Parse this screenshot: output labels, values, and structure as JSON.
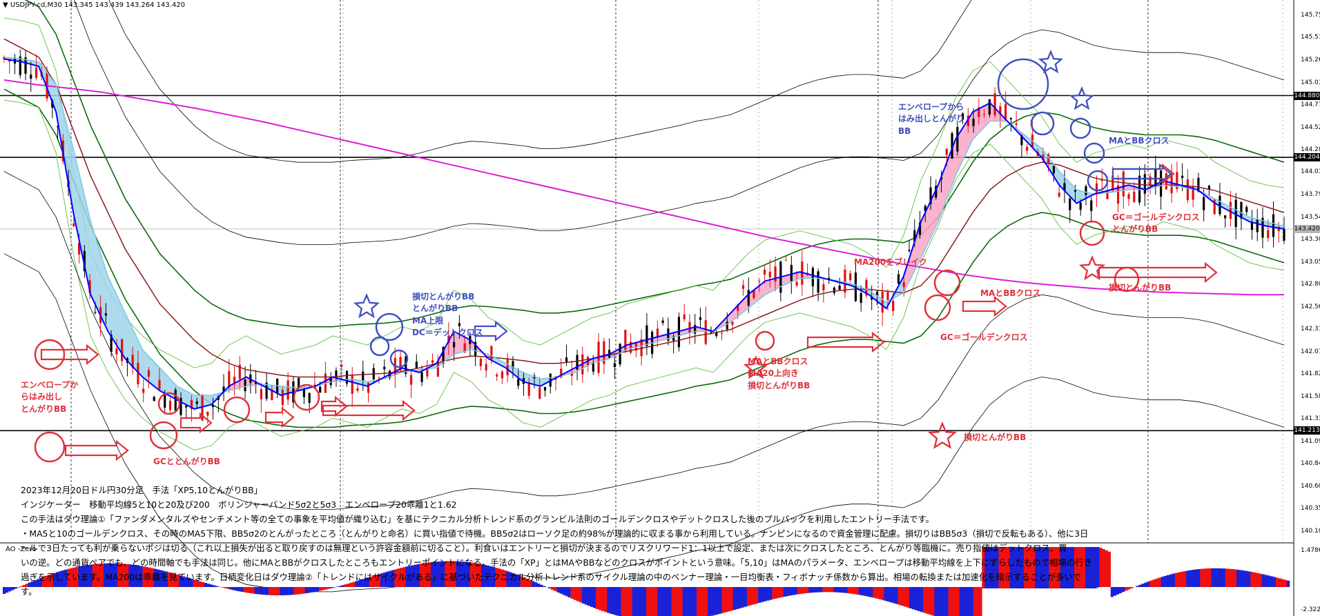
{
  "header": {
    "symbol_line": "▼ USDJPY-cd,M30  143.345 143.439 143.264 143.420"
  },
  "price_axis": {
    "ticks": [
      "145.750",
      "145.510",
      "145.260",
      "145.015",
      "144.770",
      "144.525",
      "144.280",
      "144.035",
      "143.790",
      "143.540",
      "143.300",
      "143.050",
      "142.805",
      "142.560",
      "142.315",
      "142.070",
      "141.825",
      "141.580",
      "141.335",
      "141.090",
      "140.845",
      "140.600",
      "140.355",
      "140.105"
    ],
    "levels": [
      "144.880",
      "144.204",
      "143.420",
      "141.213"
    ]
  },
  "oscillator": {
    "label": "AO -Zero",
    "top_label": "1.4786",
    "bottom_label": "-2.3224"
  },
  "annotations": [
    {
      "id": "envelope-left",
      "text": "エンベロープか\nらはみ出し\nとんがりBB",
      "color": "red"
    },
    {
      "id": "gc-tongari",
      "text": "GCととんがりBB",
      "color": "red"
    },
    {
      "id": "sl-tongari-blue",
      "text": "損切とんがりBB\nとんがりBB\nMA上限\nDC＝デットクロス",
      "color": "blue"
    },
    {
      "id": "ma-bb-cross-red",
      "text": "MAとBBクロス\nMA20上向き\n損切とんがりBB",
      "color": "red"
    },
    {
      "id": "ma200-break",
      "text": "MA200をブレイク",
      "color": "red"
    },
    {
      "id": "ma-bb-cross-2",
      "text": "MAとBBクロス",
      "color": "red"
    },
    {
      "id": "gc-golden",
      "text": "GC＝ゴールデンクロス",
      "color": "red"
    },
    {
      "id": "sl-tongari-bottom",
      "text": "損切とんがりBB",
      "color": "red"
    },
    {
      "id": "envelope-top",
      "text": "エンベロープから\nはみ出しとんがり\nBB",
      "color": "blue"
    },
    {
      "id": "ma-bb-cross-blue",
      "text": "MAとBBクロス",
      "color": "blue"
    },
    {
      "id": "gc-right",
      "text": "GC＝ゴールデンクロス\nとんがりBB",
      "color": "red"
    },
    {
      "id": "sl-tongari-right",
      "text": "損切とんがりBB",
      "color": "red"
    }
  ],
  "description": {
    "lines": [
      "2023年12月20日ドル円30分足　手法「XP5,10とんがりBB」",
      "インジケーター　移動平均線5と10と20及び200　ボリンジャーバンド5σ2と5σ3　エンベロープ20乖離1と1.62",
      "この手法はダウ理論①「ファンダメンタルズやセンチメント等の全ての事象を平均値が織り込む」を基にテクニカル分析トレンド系のグランビル法則のゴールデンクロスやデットクロスした後のプルバックを利用したエントリー手法です。",
      "・MA5と10のゴールデンクロス、その時のMA5下限、BB5σ2のとんがったところ（とんがりと命名）に買い指値で待機。BB5σ2はローソク足の約98%が理論的に収まる事から利用している。ナンピンになるので資金管理に配慮。損切りはBB5σ3（損切で反転もある）、他に3日",
      "ールで3日たっても利が乗らないポジは切る（これ以上損失が出ると取り戻すのは無理という許容金額前に切ること）。利食いはエントリーと損切が決まるのでリスクリワード1：1以上で設定、または次にクロスしたところ、とんがり等臨機に。売り指値はデットクロス、買",
      "いの逆。どの通貨ペアでも、どの時間軸でも手法は同じ。他にMAとBBがクロスしたところもエントリーポイントになる。手法の「XP」とはMAやBBなどのクロスがポイントという意味。「5,10」はMAのパラメータ、エンベロープは移動平均線を上下にずらしたもので相場の行き",
      "過ぎを示しています。MA200は乖離を見ています。日柄変化日はダウ理論②「トレンドにはサイクルがある」に基づいたテクニカル分析トレンド系のサイクル理論の中のベンナー理論・一目均衡表・フィボナッチ係数から算出。相場の転換または加速化を暗示することが多いで",
      "す。"
    ]
  },
  "chart_data": {
    "type": "line",
    "title": "",
    "symbol": "USDJPY-cd,M30",
    "ohlc_header": {
      "open": 143.345,
      "high": 143.439,
      "low": 143.264,
      "close": 143.42
    },
    "ylim": [
      140.0,
      145.85
    ],
    "series": [
      {
        "values": [
          145.28,
          145.25,
          145.2,
          144.7,
          143.6,
          142.7,
          142.3,
          142.0,
          141.8,
          141.65,
          141.55,
          141.45,
          141.5,
          141.7,
          141.8,
          141.7,
          141.6,
          141.65,
          141.7,
          141.8,
          141.75,
          141.7,
          141.8,
          141.9,
          141.85,
          141.95,
          142.3,
          142.2,
          142.0,
          141.9,
          141.75,
          141.7,
          141.8,
          141.9,
          142.0,
          142.05,
          142.15,
          142.2,
          142.25,
          142.3,
          142.35,
          142.3,
          142.5,
          142.7,
          142.85,
          142.9,
          142.95,
          142.9,
          142.85,
          142.8,
          142.7,
          142.55,
          142.9,
          143.5,
          143.9,
          144.4,
          144.7,
          144.8,
          144.6,
          144.4,
          144.2,
          143.9,
          143.7,
          143.8,
          143.85,
          143.9,
          143.85,
          143.95,
          143.9,
          143.85,
          143.7,
          143.6,
          143.5,
          143.45,
          143.42
        ],
        "color": "#0000ff"
      },
      {
        "values": [
          145.3,
          145.28,
          145.25,
          145.0,
          144.3,
          143.5,
          142.9,
          142.5,
          142.1,
          141.9,
          141.7,
          141.6,
          141.6,
          141.65,
          141.7,
          141.72,
          141.7,
          141.68,
          141.7,
          141.75,
          141.78,
          141.75,
          141.78,
          141.85,
          141.88,
          141.9,
          142.05,
          142.1,
          142.05,
          141.95,
          141.85,
          141.78,
          141.8,
          141.85,
          141.95,
          142.0,
          142.1,
          142.15,
          142.2,
          142.25,
          142.3,
          142.3,
          142.4,
          142.55,
          142.7,
          142.8,
          142.88,
          142.88,
          142.86,
          142.82,
          142.75,
          142.62,
          142.72,
          143.1,
          143.5,
          144.0,
          144.4,
          144.6,
          144.6,
          144.45,
          144.3,
          144.05,
          143.85,
          143.8,
          143.82,
          143.85,
          143.85,
          143.9,
          143.88,
          143.85,
          143.75,
          143.65,
          143.55,
          143.5,
          143.45
        ],
        "color": "#7ec8e3"
      },
      {
        "values": [
          145.5,
          145.4,
          145.3,
          145.0,
          144.5,
          144.0,
          143.6,
          143.2,
          142.9,
          142.6,
          142.4,
          142.2,
          142.05,
          141.95,
          141.88,
          141.85,
          141.82,
          141.8,
          141.8,
          141.8,
          141.82,
          141.83,
          141.84,
          141.86,
          141.9,
          141.95,
          142.0,
          142.03,
          142.02,
          142.0,
          141.98,
          141.95,
          141.95,
          141.97,
          142.0,
          142.04,
          142.08,
          142.12,
          142.16,
          142.2,
          142.25,
          142.28,
          142.32,
          142.4,
          142.48,
          142.56,
          142.64,
          142.7,
          142.74,
          142.76,
          142.76,
          142.74,
          142.72,
          142.8,
          143.0,
          143.3,
          143.6,
          143.85,
          144.0,
          144.1,
          144.15,
          144.12,
          144.05,
          143.98,
          143.94,
          143.92,
          143.9,
          143.9,
          143.9,
          143.88,
          143.84,
          143.78,
          143.72,
          143.66,
          143.6
        ],
        "color": "#8b1a1a"
      },
      {
        "values": [
          145.05,
          145.0,
          144.96,
          144.92,
          144.86,
          144.8,
          144.74,
          144.67,
          144.6,
          144.52,
          144.44,
          144.36,
          144.28,
          144.2,
          144.12,
          144.04,
          143.96,
          143.88,
          143.8,
          143.72,
          143.64,
          143.56,
          143.48,
          143.4,
          143.32,
          143.25,
          143.18,
          143.11,
          143.04,
          142.98,
          142.92,
          142.87,
          142.83,
          142.8,
          142.77,
          142.75,
          142.73,
          142.72,
          142.71,
          142.7,
          142.7
        ],
        "color": "#d81ed8"
      }
    ],
    "bands": {
      "bb_sigma3_color": "#5fbf3f",
      "bb_sigma2_color": "#0a6a0a",
      "envelope_color": "#000000"
    },
    "grid": true
  }
}
